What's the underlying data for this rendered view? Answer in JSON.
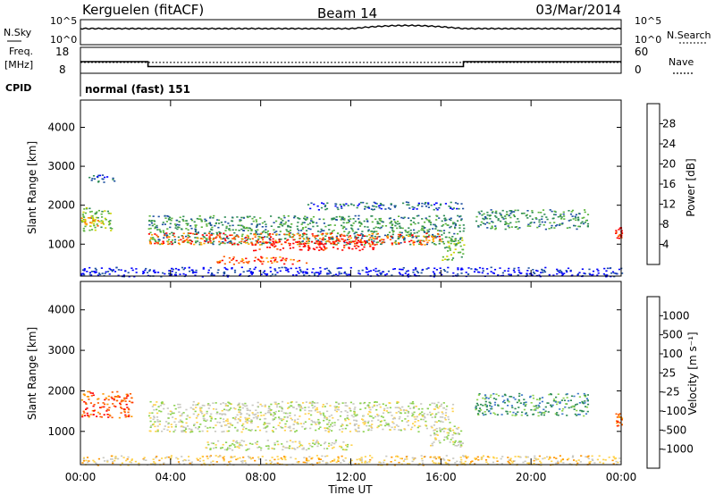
{
  "header": {
    "station": "Kerguelen (fitACF)",
    "beam": "Beam 14",
    "date": "03/Mar/2014"
  },
  "noise_panel": {
    "left_label": "N.Sky",
    "right_label": "N.Search",
    "left_ticks": [
      "10^5",
      "10^0"
    ],
    "right_ticks": [
      "10^5",
      "10^0"
    ]
  },
  "freq_panel": {
    "left_label_line1": "Freq.",
    "left_label_line2": "[MHz]",
    "right_label": "Nave",
    "left_ticks": [
      "18",
      "8"
    ],
    "right_ticks": [
      "60",
      "0"
    ],
    "freq_steps": [
      [
        0,
        12.5
      ],
      [
        3.0,
        12.5
      ],
      [
        3.0,
        10.6
      ],
      [
        17.0,
        10.6
      ],
      [
        17.0,
        12.5
      ],
      [
        24,
        12.5
      ]
    ],
    "nave_level": 25
  },
  "cpid": {
    "label": "CPID",
    "value": "normal (fast) 151"
  },
  "time_axis": {
    "label": "Time UT",
    "ticks": [
      "00:00",
      "04:00",
      "08:00",
      "12:00",
      "16:00",
      "20:00",
      "00:00"
    ]
  },
  "chart_data": [
    {
      "type": "heatmap",
      "title": "Power",
      "ylabel": "Slant Range [km]",
      "colorbar_label": "Power [dB]",
      "xlim": [
        0,
        24
      ],
      "ylim": [
        180,
        4700
      ],
      "yticks": [
        1000,
        2000,
        3000,
        4000
      ],
      "colorbar_ticks": [
        "28",
        "24",
        "20",
        "16",
        "12",
        "8",
        "4"
      ],
      "colorbar_colors": [
        "#ff0000",
        "#ff5a00",
        "#ffaa00",
        "#c8d200",
        "#5ab43c",
        "#2e8c55",
        "#1c4fa0",
        "#0000ff"
      ],
      "regions": [
        {
          "t0": 0.0,
          "t1": 1.4,
          "r0": 1350,
          "r1": 1950,
          "level": 4
        },
        {
          "t0": 0.0,
          "t1": 1.0,
          "r0": 1450,
          "r1": 1700,
          "level": 2
        },
        {
          "t0": 0.3,
          "t1": 1.5,
          "r0": 2600,
          "r1": 2800,
          "level": 6
        },
        {
          "t0": 3.0,
          "t1": 17.0,
          "r0": 1000,
          "r1": 1750,
          "level": 5
        },
        {
          "t0": 3.0,
          "t1": 16.0,
          "r0": 1000,
          "r1": 1300,
          "level": 1
        },
        {
          "t0": 7.5,
          "t1": 13.0,
          "r0": 850,
          "r1": 1100,
          "level": 0
        },
        {
          "t0": 6.0,
          "t1": 10.0,
          "r0": 500,
          "r1": 700,
          "level": 1
        },
        {
          "t0": 10.0,
          "t1": 17.0,
          "r0": 1900,
          "r1": 2100,
          "level": 6
        },
        {
          "t0": 16.0,
          "t1": 17.0,
          "r0": 600,
          "r1": 1200,
          "level": 4
        },
        {
          "t0": 17.5,
          "t1": 22.5,
          "r0": 1400,
          "r1": 1900,
          "level": 5
        },
        {
          "t0": 23.7,
          "t1": 24.0,
          "r0": 1150,
          "r1": 1450,
          "level": 0
        },
        {
          "t0": 0.0,
          "t1": 24.0,
          "r0": 180,
          "r1": 420,
          "level": 7
        }
      ]
    },
    {
      "type": "heatmap",
      "title": "Velocity",
      "ylabel": "Slant Range [km]",
      "colorbar_label": "Velocity [m s⁻¹]",
      "xlim": [
        0,
        24
      ],
      "ylim": [
        180,
        4700
      ],
      "yticks": [
        1000,
        2000,
        3000,
        4000
      ],
      "colorbar_ticks": [
        "1000",
        "500",
        "100",
        "25",
        "-25",
        "-100",
        "-500",
        "-1000"
      ],
      "colorbar_colors": [
        "#1c3c9c",
        "#3c78c8",
        "#2e8c55",
        "#8cd250",
        "#c8c8c0",
        "#ffd24a",
        "#ff9600",
        "#ff5a00",
        "#ff0000"
      ],
      "regions": [
        {
          "t0": 0.0,
          "t1": 2.3,
          "r0": 1350,
          "r1": 2000,
          "level": 7
        },
        {
          "t0": 3.0,
          "t1": 16.5,
          "r0": 1000,
          "r1": 1750,
          "level": 4
        },
        {
          "t0": 5.5,
          "t1": 12.0,
          "r0": 550,
          "r1": 800,
          "level": 4
        },
        {
          "t0": 15.5,
          "t1": 17.0,
          "r0": 600,
          "r1": 1150,
          "level": 4
        },
        {
          "t0": 17.5,
          "t1": 22.5,
          "r0": 1400,
          "r1": 1950,
          "level": 2
        },
        {
          "t0": 23.7,
          "t1": 24.0,
          "r0": 1150,
          "r1": 1450,
          "level": 7
        },
        {
          "t0": 0.0,
          "t1": 24.0,
          "r0": 180,
          "r1": 420,
          "level": 5
        }
      ]
    }
  ]
}
